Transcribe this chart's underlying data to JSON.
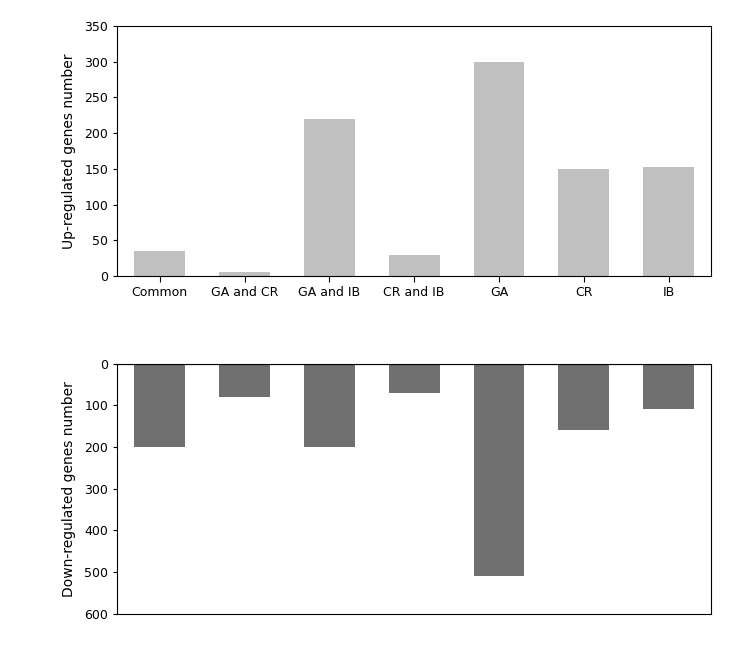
{
  "categories": [
    "Common",
    "GA and CR",
    "GA and IB",
    "CR and IB",
    "GA",
    "CR",
    "IB"
  ],
  "up_values": [
    35,
    5,
    220,
    30,
    300,
    150,
    153
  ],
  "down_values": [
    -200,
    -80,
    -200,
    -70,
    -510,
    -160,
    -110
  ],
  "up_color": "#c0c0c0",
  "down_color": "#707070",
  "up_ylabel": "Up-regulated genes number",
  "down_ylabel": "Down-regulated genes number",
  "up_ylim": [
    0,
    350
  ],
  "up_yticks": [
    0,
    50,
    100,
    150,
    200,
    250,
    300,
    350
  ],
  "down_ylim": [
    -600,
    0
  ],
  "down_yticks": [
    0,
    100,
    200,
    300,
    400,
    500,
    600
  ],
  "background_color": "#ffffff",
  "label_fontsize": 9,
  "ylabel_fontsize": 10
}
